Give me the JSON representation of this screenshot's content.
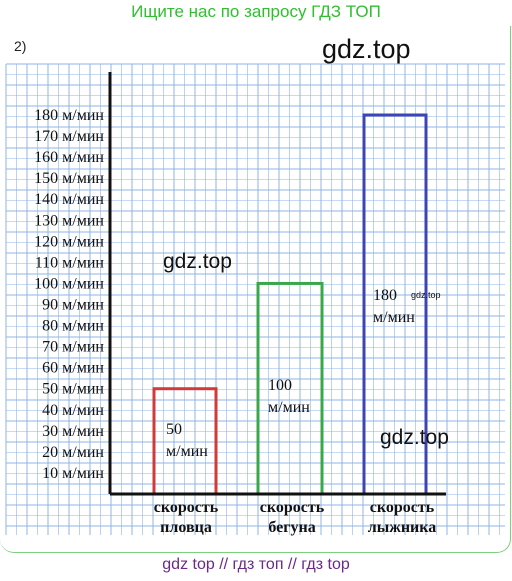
{
  "banner": "Ищите нас по запросу ГДЗ ТОП",
  "task_number": "2)",
  "watermarks": [
    "gdz.top",
    "gdz.top",
    "gdz.top",
    "gdz.top"
  ],
  "footer": "gdz top  //  гдз топ  //  гдз top",
  "colors": {
    "grid": "#8fb6e6",
    "axis": "#111111",
    "banner": "#2fbf2f",
    "footer": "#6a2a8a"
  },
  "chart_data": {
    "type": "bar",
    "categories": [
      [
        "скорость",
        "пловца"
      ],
      [
        "скорость",
        "бегуна"
      ],
      [
        "скорость",
        "лыжника"
      ]
    ],
    "values": [
      50,
      100,
      180
    ],
    "bar_labels": [
      [
        "50",
        "м/мин"
      ],
      [
        "100",
        "м/мин"
      ],
      [
        "180",
        "м/мин"
      ]
    ],
    "bar_colors": [
      "#d23a3a",
      "#3aa84a",
      "#3d45b5"
    ],
    "ylim": [
      0,
      180
    ],
    "yticks": [
      10,
      20,
      30,
      40,
      50,
      60,
      70,
      80,
      90,
      100,
      110,
      120,
      130,
      140,
      150,
      160,
      170,
      180
    ],
    "ytick_unit": "м/мин",
    "bar_fill": "none",
    "grid": true
  }
}
